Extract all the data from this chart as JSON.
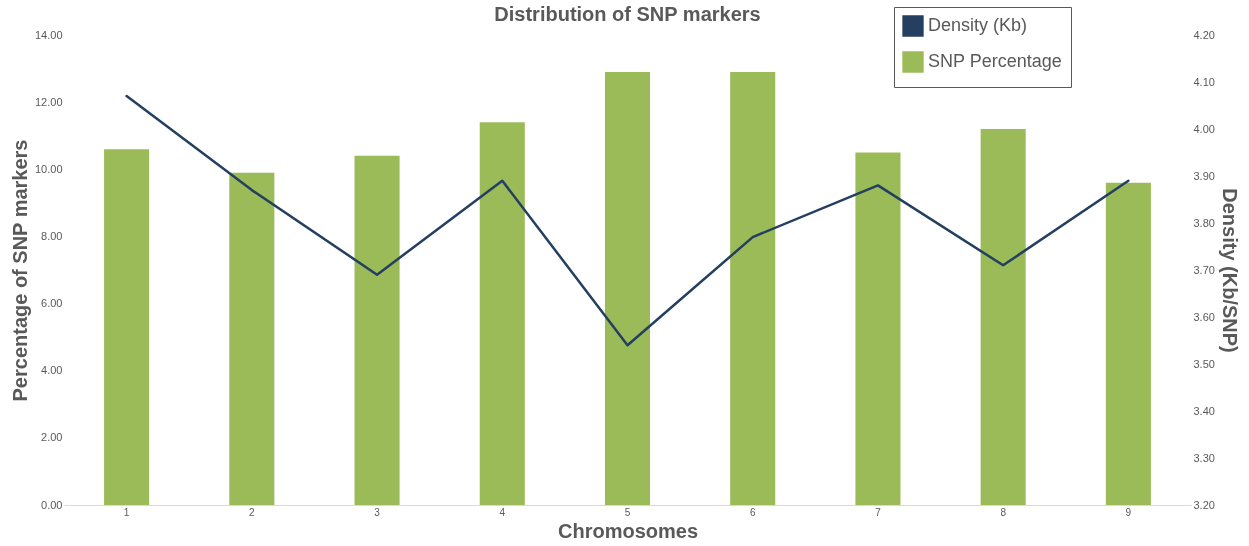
{
  "chart_data": {
    "type": "bar",
    "title": "Distribution of SNP markers",
    "xlabel": "Chromosomes",
    "ylabel": "Percentage of SNP markers",
    "y2label": "Density (Kb/SNP)",
    "categories": [
      "1",
      "2",
      "3",
      "4",
      "5",
      "6",
      "7",
      "8",
      "9"
    ],
    "series": [
      {
        "name": "Density (Kb)",
        "type": "line",
        "axis": "y2",
        "color": "#243f60",
        "values": [
          4.07,
          3.87,
          3.69,
          3.89,
          3.54,
          3.77,
          3.88,
          3.71,
          3.89
        ]
      },
      {
        "name": "SNP Percentage",
        "color": "#9bbb59",
        "values": [
          10.6,
          9.9,
          10.4,
          11.4,
          12.9,
          12.9,
          10.5,
          11.2,
          9.6
        ]
      }
    ],
    "ylim": [
      0,
      14
    ],
    "yticks": [
      {
        "value": 0,
        "label": "0.00"
      },
      {
        "value": 2,
        "label": "2.00"
      },
      {
        "value": 4,
        "label": "4.00"
      },
      {
        "value": 6,
        "label": "6.00"
      },
      {
        "value": 8,
        "label": "8.00"
      },
      {
        "value": 10,
        "label": "10.00"
      },
      {
        "value": 12,
        "label": "12.00"
      },
      {
        "value": 14,
        "label": "14.00"
      }
    ],
    "y2lim": [
      3.2,
      4.2
    ],
    "y2ticks": [
      {
        "value": 3.2,
        "label": "3.20"
      },
      {
        "value": 3.3,
        "label": "3.30"
      },
      {
        "value": 3.4,
        "label": "3.40"
      },
      {
        "value": 3.5,
        "label": "3.50"
      },
      {
        "value": 3.6,
        "label": "3.60"
      },
      {
        "value": 3.7,
        "label": "3.70"
      },
      {
        "value": 3.8,
        "label": "3.80"
      },
      {
        "value": 3.9,
        "label": "3.90"
      },
      {
        "value": 4.0,
        "label": "4.00"
      },
      {
        "value": 4.1,
        "label": "4.10"
      },
      {
        "value": 4.2,
        "label": "4.20"
      }
    ],
    "grid": false,
    "legend": "top right"
  }
}
